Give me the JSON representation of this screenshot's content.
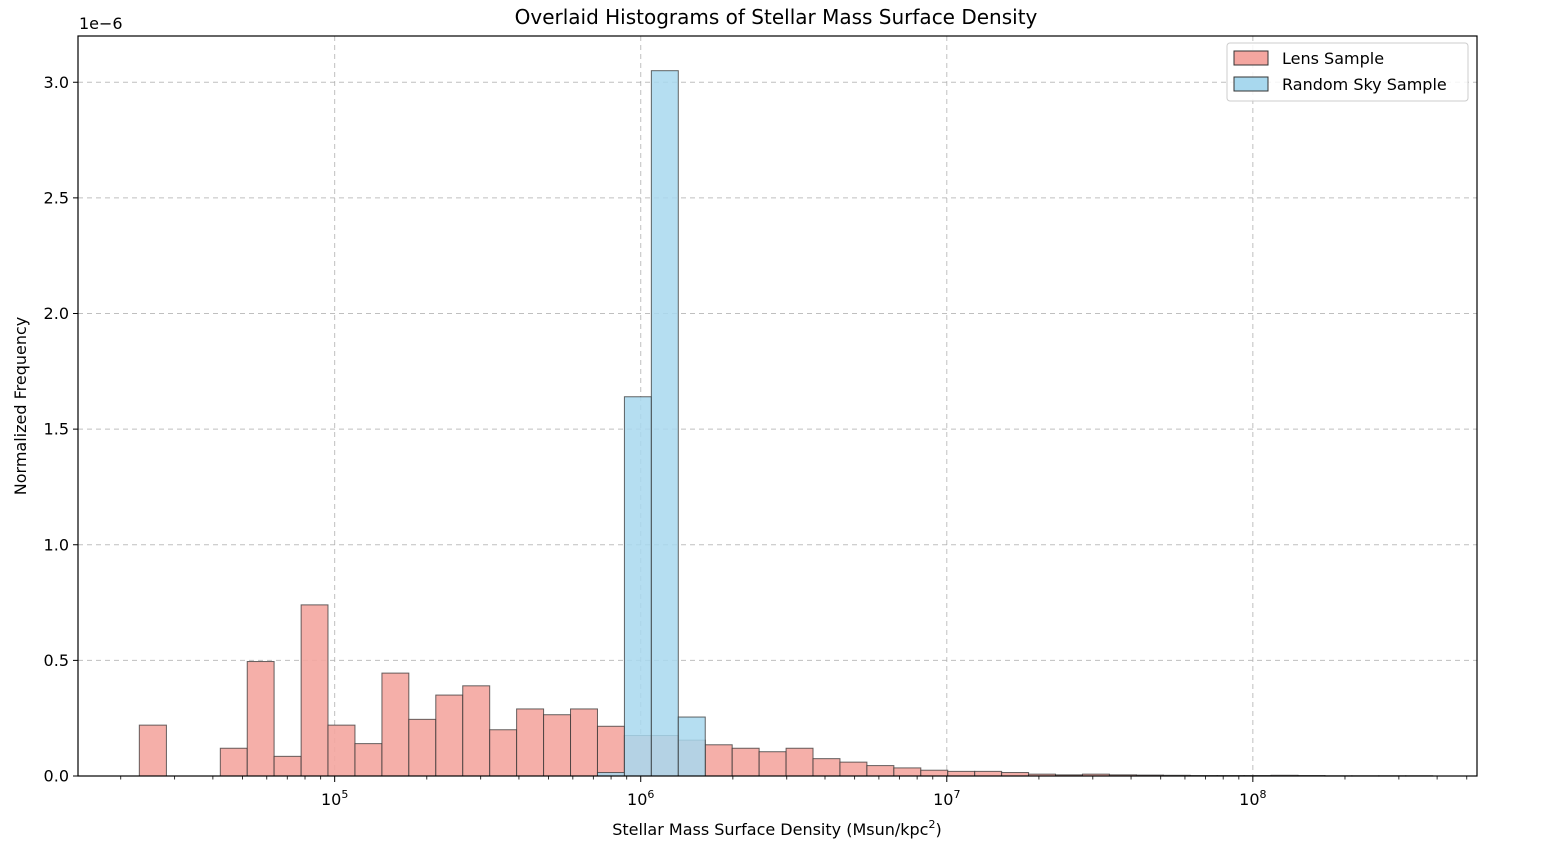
{
  "chart_data": {
    "type": "bar",
    "title": "Overlaid Histograms of Stellar Mass Surface Density",
    "xlabel_main": "Stellar Mass Surface Density (Msun/kpc",
    "xlabel_sup": "2",
    "xlabel_end": ")",
    "ylabel": "Normalized Frequency",
    "y_offset_text": "1e−6",
    "x_scale": "log",
    "xlim": [
      14500,
      540000000
    ],
    "ylim": [
      0,
      3.2
    ],
    "grid": true,
    "legend_position": "top-right",
    "y_ticks": [
      {
        "value": 0.0,
        "label": "0.0"
      },
      {
        "value": 0.5,
        "label": "0.5"
      },
      {
        "value": 1.0,
        "label": "1.0"
      },
      {
        "value": 1.5,
        "label": "1.5"
      },
      {
        "value": 2.0,
        "label": "2.0"
      },
      {
        "value": 2.5,
        "label": "2.5"
      },
      {
        "value": 3.0,
        "label": "3.0"
      }
    ],
    "x_ticks": [
      {
        "value": 100000,
        "base": "10",
        "exp": "5"
      },
      {
        "value": 1000000,
        "base": "10",
        "exp": "6"
      },
      {
        "value": 10000000,
        "base": "10",
        "exp": "7"
      },
      {
        "value": 100000000,
        "base": "10",
        "exp": "8"
      }
    ],
    "series": [
      {
        "name": "Lens Sample",
        "color": "#f4a6a0",
        "bin_edges": [
          23000,
          28200,
          34500,
          42300,
          51800,
          63400,
          77700,
          95100,
          116500,
          142700,
          174700,
          214000,
          262100,
          321000,
          393100,
          481500,
          589700,
          722200,
          884500,
          1083200,
          1326600,
          1624800,
          1989900,
          2437100,
          2984800,
          3655500,
          4476900,
          5483000,
          6715200,
          8224200,
          10072400,
          12335900,
          15108000,
          18503000,
          22661000,
          27753000,
          33990000,
          41628000,
          50983000,
          62439000,
          76471000,
          93656000,
          114700000,
          140470000,
          172040000,
          210700000,
          258050000,
          316040000,
          387060000
        ],
        "values": [
          0.22,
          0.0,
          0.0,
          0.12,
          0.495,
          0.085,
          0.74,
          0.22,
          0.14,
          0.445,
          0.245,
          0.35,
          0.39,
          0.2,
          0.29,
          0.265,
          0.29,
          0.215,
          0.175,
          0.175,
          0.155,
          0.135,
          0.12,
          0.105,
          0.12,
          0.075,
          0.06,
          0.045,
          0.035,
          0.025,
          0.02,
          0.02,
          0.015,
          0.008,
          0.005,
          0.008,
          0.005,
          0.004,
          0.003,
          0.002,
          0.002,
          0.002,
          0.003,
          0.002,
          0.001,
          0.001,
          0.001,
          0.001
        ]
      },
      {
        "name": "Random Sky Sample",
        "color": "#a8d8ee",
        "bin_edges": [
          722200,
          884500,
          1083200,
          1326600,
          1624800
        ],
        "values": [
          0.015,
          1.64,
          3.05,
          0.255
        ]
      }
    ]
  }
}
